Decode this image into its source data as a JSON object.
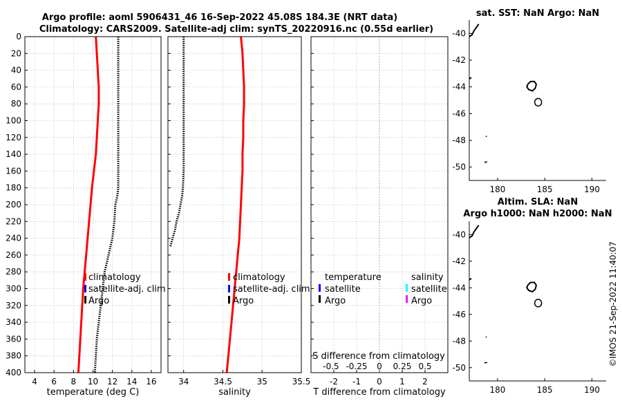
{
  "title": {
    "line1": "Argo profile: aoml 5906431_46 16-Sep-2022 45.08S 184.3E (NRT data)",
    "line2": "Climatology: CARS2009. Satellite-adj clim: synTS_20220916.nc (0.55d earlier)"
  },
  "watermark": "©IMOS 21-Sep-2022 11:40:07",
  "colors": {
    "climatology": "#ff0000",
    "satellite": "#0000ff",
    "argo": "#000000",
    "satellite_s": "#00ffff",
    "argo_s": "#ff00ff"
  },
  "legend": {
    "items": [
      "climatology",
      "satellite-adj. clim",
      "Argo"
    ],
    "diff_temperature_header": "temperature",
    "diff_salinity_header": "salinity",
    "diff_items": [
      "satellite",
      "Argo"
    ]
  },
  "chart_data": [
    {
      "id": "temperature",
      "type": "line",
      "xlabel": "temperature (deg C)",
      "xlim": [
        3,
        17
      ],
      "xticks": [
        4,
        6,
        8,
        10,
        12,
        14,
        16
      ],
      "ylim": [
        0,
        400
      ],
      "yticks": [
        0,
        20,
        40,
        60,
        80,
        100,
        120,
        140,
        160,
        180,
        200,
        220,
        240,
        260,
        280,
        300,
        320,
        340,
        360,
        380,
        400
      ],
      "y_reversed": true,
      "series": [
        {
          "name": "climatology",
          "depth": [
            0,
            20,
            40,
            60,
            80,
            100,
            120,
            140,
            160,
            180,
            200,
            220,
            240,
            260,
            280,
            300,
            320,
            340,
            360,
            380,
            400
          ],
          "values": [
            10.3,
            10.4,
            10.5,
            10.6,
            10.6,
            10.5,
            10.4,
            10.3,
            10.1,
            9.9,
            9.75,
            9.6,
            9.45,
            9.3,
            9.15,
            9.0,
            8.9,
            8.8,
            8.7,
            8.6,
            8.5
          ]
        },
        {
          "name": "Argo",
          "depth": [
            0,
            20,
            40,
            60,
            80,
            100,
            120,
            140,
            160,
            180,
            190,
            200,
            220,
            240,
            260,
            280,
            300,
            320,
            340,
            360,
            380,
            400
          ],
          "values": [
            12.6,
            12.6,
            12.6,
            12.6,
            12.6,
            12.6,
            12.6,
            12.6,
            12.6,
            12.6,
            12.5,
            12.3,
            12.2,
            12.0,
            11.6,
            11.2,
            11.0,
            10.8,
            10.6,
            10.4,
            10.3,
            10.2
          ]
        }
      ]
    },
    {
      "id": "salinity",
      "type": "line",
      "xlabel": "salinity",
      "xlim": [
        33.8,
        35.5
      ],
      "xticks": [
        34,
        34.5,
        35,
        35.5
      ],
      "ylim": [
        0,
        400
      ],
      "y_reversed": true,
      "series": [
        {
          "name": "climatology",
          "depth": [
            0,
            20,
            40,
            60,
            80,
            100,
            120,
            140,
            160,
            180,
            200,
            220,
            240,
            260,
            280,
            300,
            320,
            340,
            360,
            380,
            400
          ],
          "values": [
            34.73,
            34.75,
            34.76,
            34.77,
            34.77,
            34.76,
            34.76,
            34.75,
            34.75,
            34.74,
            34.73,
            34.72,
            34.71,
            34.69,
            34.67,
            34.65,
            34.63,
            34.61,
            34.59,
            34.57,
            34.55
          ]
        },
        {
          "name": "Argo",
          "depth": [
            0,
            20,
            40,
            60,
            80,
            100,
            120,
            140,
            160,
            180,
            190,
            200,
            210,
            220,
            230,
            240,
            250
          ],
          "values": [
            34.0,
            34.0,
            34.0,
            34.0,
            34.0,
            34.0,
            34.0,
            34.0,
            34.0,
            33.99,
            33.98,
            33.96,
            33.94,
            33.91,
            33.89,
            33.86,
            33.83
          ]
        }
      ]
    },
    {
      "id": "difference",
      "type": "line",
      "xlabel": "T difference from climatology",
      "xlim": [
        -3,
        3
      ],
      "xticks": [
        -2,
        -1,
        0,
        1,
        2
      ],
      "secondary_xlabel": "S difference from climatology",
      "secondary_xticks": [
        "-0.5",
        "-0.25",
        "0",
        "0.25",
        "0.5"
      ],
      "ylim": [
        0,
        400
      ],
      "y_reversed": true,
      "series": [
        {
          "name": "zero line",
          "depth": [
            0,
            400
          ],
          "values": [
            0,
            0
          ]
        }
      ]
    },
    {
      "id": "sst_map",
      "type": "map",
      "title": "sat. SST: NaN Argo: NaN",
      "xlim": [
        177,
        191.5
      ],
      "xticks": [
        180,
        185,
        190
      ],
      "ylim": [
        -51,
        -39
      ],
      "yticks": [
        -40,
        -42,
        -44,
        -46,
        -48,
        -50
      ]
    },
    {
      "id": "sla_map",
      "type": "map",
      "title_line1": "Altim. SLA: NaN",
      "title_line2": "Argo h1000: NaN h2000: NaN",
      "xlim": [
        177,
        191.5
      ],
      "xticks": [
        180,
        185,
        190
      ],
      "ylim": [
        -51,
        -39
      ],
      "yticks": [
        -40,
        -42,
        -44,
        -46,
        -48,
        -50
      ]
    }
  ]
}
